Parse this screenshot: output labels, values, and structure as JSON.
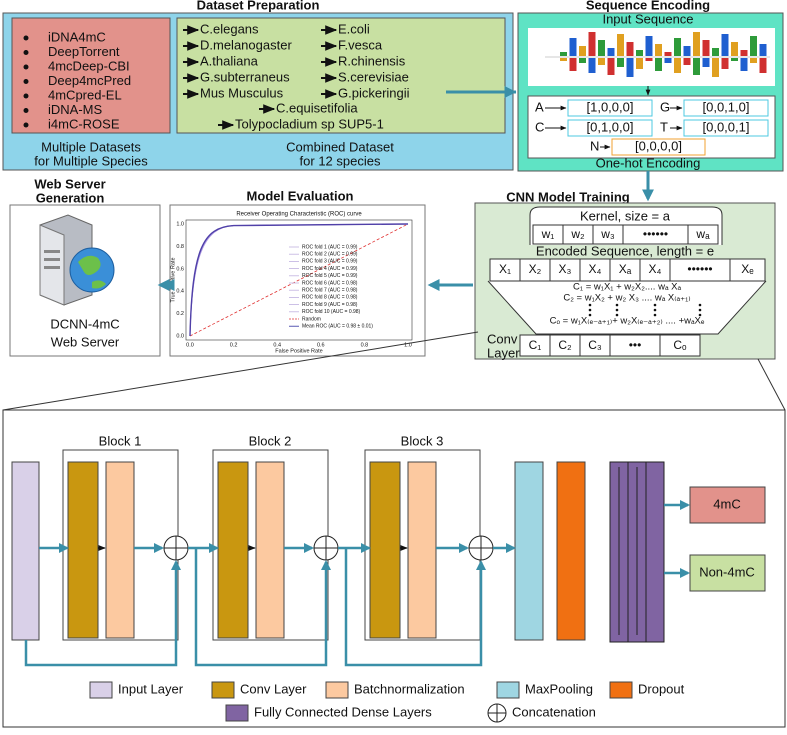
{
  "dataset_preparation": {
    "title": "Dataset Preparation",
    "datasets": [
      "iDNA4mC",
      "DeepTorrent",
      "4mcDeep-CBI",
      "Deep4mcPred",
      "4mCpred-EL",
      "iDNA-MS",
      "i4mC-ROSE"
    ],
    "datasets_caption": [
      "Multiple Datasets",
      "for Multiple Species"
    ],
    "species": [
      "C.elegans",
      "D.melanogaster",
      "A.thaliana",
      "G.subterraneus",
      "Mus Musculus",
      "E.coli",
      "F.vesca",
      "R.chinensis",
      "S.cerevisiae",
      "G.pickeringii",
      "C.equisetifolia",
      "Tolypocladium sp SUP5-1"
    ],
    "species_caption": [
      "Combined Dataset",
      "for 12 species"
    ]
  },
  "sequence_encoding": {
    "title": "Sequence Encoding",
    "input_label": "Input Sequence",
    "encodings": [
      {
        "base": "A",
        "code": "[1,0,0,0]"
      },
      {
        "base": "G",
        "code": "[0,0,1,0]"
      },
      {
        "base": "C",
        "code": "[0,1,0,0]"
      },
      {
        "base": "T",
        "code": "[0,0,0,1]"
      },
      {
        "base": "N",
        "code": "[0,0,0,0]"
      }
    ],
    "caption": "One-hot Encoding"
  },
  "cnn_training": {
    "title": "CNN Model Training",
    "kernel_label": "Kernel, size = a",
    "kernel": [
      "w₁",
      "w₂",
      "w₃",
      "••••••",
      "wₐ"
    ],
    "sequence_label": "Encoded Sequence, length = e",
    "sequence": [
      "X₁",
      "X₂",
      "X₃",
      "X₄",
      "Xₐ",
      "X₄",
      "••••••",
      "Xₑ"
    ],
    "formulas": [
      "C₁ = w₁X₁ + w₂X₂.... wₐ Xₐ",
      "C₂ = w₁X₂ + w₂ X₃ .... wₐ X₍ₐ₊₁₎",
      "Cₒ = w₁X₍ₑ₋ₐ₊₁₎+ w₂X₍ₑ₋ₐ₊₂₎ .... +wₐXₑ"
    ],
    "conv_label": [
      "Conv",
      "Layer"
    ],
    "output": [
      "C₁",
      "C₂",
      "C₃",
      "•••",
      "Cₒ"
    ]
  },
  "model_evaluation": {
    "title": "Model Evaluation",
    "roc": {
      "title": "Receiver Operating Characteristic (ROC) curve",
      "x_label": "False Positive Rate",
      "y_label": "True Positive Rate",
      "xticks": [
        "0.0",
        "0.2",
        "0.4",
        "0.6",
        "0.8",
        "1.0"
      ],
      "yticks": [
        "0.0",
        "0.2",
        "0.4",
        "0.6",
        "0.8",
        "1.0"
      ],
      "legend": [
        "ROC fold 1 (AUC = 0.99)",
        "ROC fold 2 (AUC = 0.99)",
        "ROC fold 3 (AUC = 0.99)",
        "ROC fold 4 (AUC = 0.99)",
        "ROC fold 5 (AUC = 0.99)",
        "ROC fold 6 (AUC = 0.98)",
        "ROC fold 7 (AUC = 0.98)",
        "ROC fold 8 (AUC = 0.98)",
        "ROC fold 9 (AUC = 0.98)",
        "ROC fold 10 (AUC = 0.98)",
        "Random",
        "Mean ROC (AUC = 0.98 ± 0.01)"
      ]
    }
  },
  "web_server": {
    "title": [
      "Web Server",
      "Generation"
    ],
    "name": [
      "DCNN-4mC",
      "Web Server"
    ]
  },
  "architecture": {
    "blocks": [
      "Block 1",
      "Block 2",
      "Block 3"
    ],
    "outputs": [
      "4mC",
      "Non-4mC"
    ]
  },
  "legend": [
    "Input Layer",
    "Conv Layer",
    "Batchnormalization",
    "MaxPooling",
    "Dropout",
    "Fully Connected Dense Layers",
    "Concatenation"
  ]
}
